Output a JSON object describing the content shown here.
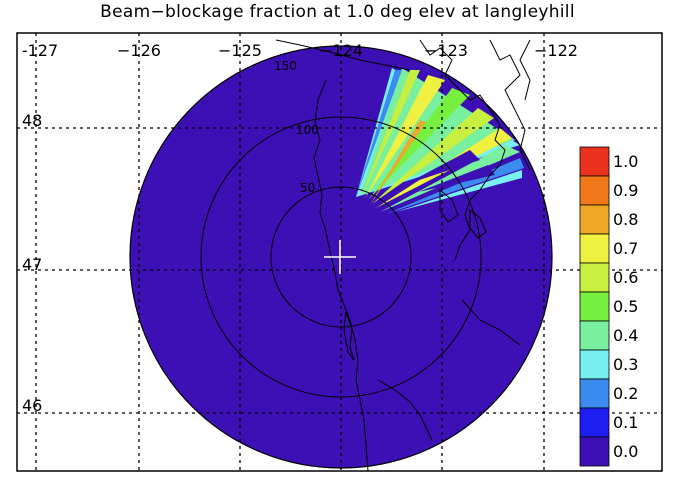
{
  "title": "Beam−blockage fraction at 1.0 deg elev at langleyhill",
  "lon_ticks": [
    "-127",
    "−126",
    "−125",
    "−124",
    "−123",
    "−122"
  ],
  "lat_ticks": [
    "48",
    "47",
    "46"
  ],
  "range_ring_labels": [
    "50",
    "100",
    "150"
  ],
  "colorbar": {
    "labels": [
      "1.0",
      "0.9",
      "0.8",
      "0.7",
      "0.6",
      "0.5",
      "0.4",
      "0.3",
      "0.2",
      "0.1",
      "0.0"
    ],
    "colors": [
      "#e8321e",
      "#f07818",
      "#f0a828",
      "#f0f040",
      "#c8f040",
      "#78f040",
      "#78f0a0",
      "#78f0f0",
      "#3c8cf0",
      "#1e1ef0",
      "#3c10b4"
    ]
  },
  "colors": {
    "background_field": "#3c10b4",
    "coastline": "#000000",
    "radar_marker": "#ffffff"
  },
  "radar_site": "langleyhill"
}
